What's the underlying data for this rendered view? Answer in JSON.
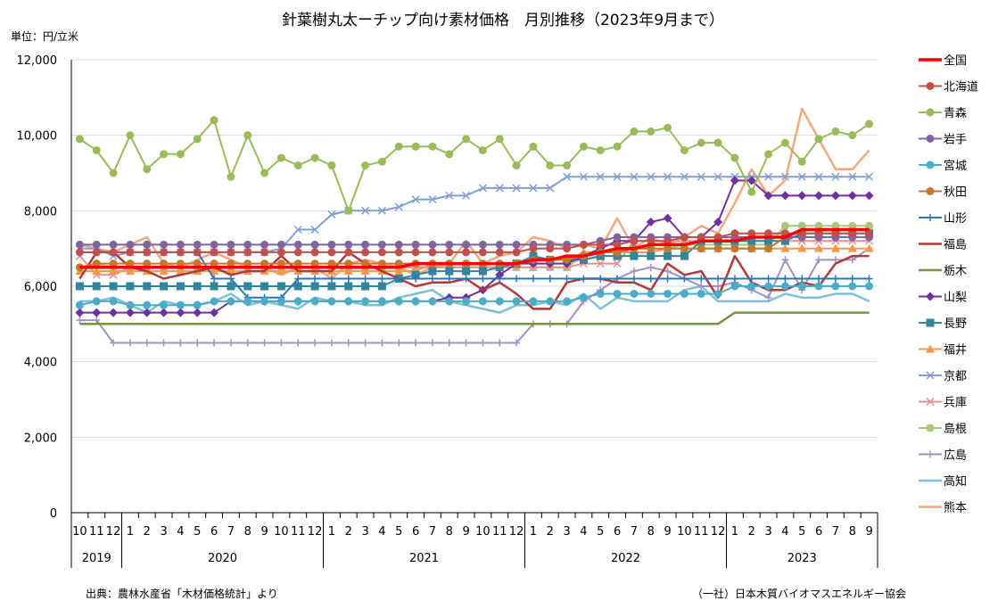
{
  "title": "針葉樹丸太ーチップ向け素材価格　月別推移（2023年9月まで）",
  "unit": "単位：円/立米",
  "source": "出典：農林水産省「木材価格統計」より",
  "publisher": "（一社）日本木質バイオマスエネルギー協会",
  "chart_data": {
    "type": "line",
    "title": "針葉樹丸太ーチップ向け素材価格　月別推移（2023年9月まで）",
    "ylabel": "単位：円/立米",
    "ylim": [
      0,
      12000
    ],
    "yticks": [
      0,
      2000,
      4000,
      6000,
      8000,
      10000,
      12000
    ],
    "ytick_labels": [
      "0",
      "2,000",
      "4,000",
      "6,000",
      "8,000",
      "10,000",
      "12,000"
    ],
    "grid": true,
    "legend_position": "right",
    "x_month_labels": [
      "10",
      "11",
      "12",
      "1",
      "2",
      "3",
      "4",
      "5",
      "6",
      "7",
      "8",
      "9",
      "10",
      "11",
      "12",
      "1",
      "2",
      "3",
      "4",
      "5",
      "6",
      "7",
      "8",
      "9",
      "10",
      "11",
      "12",
      "1",
      "2",
      "3",
      "4",
      "5",
      "6",
      "7",
      "8",
      "9",
      "10",
      "11",
      "12",
      "1",
      "2",
      "3",
      "4",
      "5",
      "6",
      "7",
      "8",
      "9"
    ],
    "x_year_groups": [
      {
        "label": "2019",
        "count": 3
      },
      {
        "label": "2020",
        "count": 12
      },
      {
        "label": "2021",
        "count": 12
      },
      {
        "label": "2022",
        "count": 12
      },
      {
        "label": "2023",
        "count": 9
      }
    ],
    "series": [
      {
        "name": "全国",
        "color": "#ff0000",
        "marker": "none",
        "width": 3.5,
        "values": [
          6500,
          6500,
          6500,
          6500,
          6500,
          6500,
          6500,
          6500,
          6500,
          6500,
          6500,
          6500,
          6500,
          6500,
          6500,
          6500,
          6500,
          6500,
          6500,
          6500,
          6600,
          6600,
          6600,
          6600,
          6600,
          6600,
          6600,
          6700,
          6700,
          6800,
          6800,
          6900,
          7000,
          7000,
          7100,
          7100,
          7100,
          7200,
          7200,
          7200,
          7300,
          7300,
          7300,
          7500,
          7500,
          7500,
          7500,
          7500
        ]
      },
      {
        "name": "北海道",
        "color": "#c0504d",
        "marker": "circle",
        "width": 2,
        "values": [
          6900,
          6900,
          6900,
          6900,
          6900,
          6900,
          6900,
          6900,
          6900,
          6900,
          6900,
          6900,
          6900,
          6900,
          6900,
          6900,
          6900,
          6900,
          6900,
          6900,
          6900,
          6900,
          6900,
          6900,
          6900,
          6900,
          6900,
          7000,
          7000,
          7000,
          7100,
          7100,
          7100,
          7200,
          7200,
          7200,
          7300,
          7300,
          7300,
          7400,
          7400,
          7400,
          7400,
          7400,
          7400,
          7400,
          7400,
          7400
        ]
      },
      {
        "name": "青森",
        "color": "#9bbb59",
        "marker": "circle",
        "width": 2,
        "values": [
          9900,
          9600,
          9000,
          10000,
          9100,
          9500,
          9500,
          9900,
          10400,
          8900,
          10000,
          9000,
          9400,
          9200,
          9400,
          9200,
          8000,
          9200,
          9300,
          9700,
          9700,
          9700,
          9500,
          9900,
          9600,
          9900,
          9200,
          9700,
          9200,
          9200,
          9700,
          9600,
          9700,
          10100,
          10100,
          10200,
          9600,
          9800,
          9800,
          9400,
          8500,
          9500,
          9800,
          9300,
          9900,
          10100,
          10000,
          10300
        ]
      },
      {
        "name": "岩手",
        "color": "#8064a2",
        "marker": "circle",
        "width": 2,
        "values": [
          7100,
          7100,
          7100,
          7100,
          7100,
          7100,
          7100,
          7100,
          7100,
          7100,
          7100,
          7100,
          7100,
          7100,
          7100,
          7100,
          7100,
          7100,
          7100,
          7100,
          7100,
          7100,
          7100,
          7100,
          7100,
          7100,
          7100,
          7100,
          7100,
          7100,
          7100,
          7200,
          7300,
          7300,
          7300,
          7300,
          7300,
          7300,
          7300,
          7300,
          7300,
          7300,
          7300,
          7300,
          7300,
          7300,
          7300,
          7300
        ]
      },
      {
        "name": "宮城",
        "color": "#4bacc6",
        "marker": "circle",
        "width": 2,
        "values": [
          5500,
          5600,
          5600,
          5500,
          5500,
          5500,
          5500,
          5500,
          5600,
          5600,
          5600,
          5600,
          5600,
          5600,
          5600,
          5600,
          5600,
          5600,
          5600,
          5600,
          5600,
          5600,
          5600,
          5600,
          5600,
          5600,
          5600,
          5600,
          5600,
          5600,
          5700,
          5800,
          5800,
          5800,
          5800,
          5800,
          5800,
          5800,
          5800,
          6000,
          6000,
          6000,
          6000,
          6000,
          6000,
          6000,
          6000,
          6000
        ]
      },
      {
        "name": "秋田",
        "color": "#c0792f",
        "marker": "circle",
        "width": 2,
        "values": [
          6500,
          6600,
          6600,
          6600,
          6600,
          6600,
          6600,
          6600,
          6600,
          6600,
          6600,
          6600,
          6600,
          6600,
          6600,
          6600,
          6600,
          6600,
          6600,
          6600,
          6600,
          6600,
          6600,
          6600,
          6600,
          6600,
          6600,
          6700,
          6700,
          6700,
          6800,
          6900,
          6900,
          7000,
          7000,
          7000,
          7000,
          7000,
          7000,
          7000,
          7000,
          7000,
          7300,
          7300,
          7300,
          7300,
          7300,
          7300
        ]
      },
      {
        "name": "山形",
        "color": "#2e75b6",
        "marker": "plus",
        "width": 2,
        "values": [
          6900,
          6900,
          6900,
          6900,
          6900,
          6900,
          6900,
          6900,
          6200,
          6200,
          5700,
          5700,
          5700,
          6200,
          6200,
          6200,
          6200,
          6200,
          6200,
          6200,
          6200,
          6200,
          6200,
          6200,
          6200,
          6200,
          6200,
          6200,
          6200,
          6200,
          6200,
          6200,
          6200,
          6200,
          6200,
          6200,
          6200,
          6200,
          6200,
          6200,
          6200,
          6200,
          6200,
          6200,
          6200,
          6200,
          6200,
          6200
        ]
      },
      {
        "name": "福島",
        "color": "#b2393a",
        "marker": "none",
        "width": 2.5,
        "values": [
          6200,
          6900,
          6900,
          6500,
          6400,
          6200,
          6300,
          6400,
          6500,
          6300,
          6400,
          6400,
          6800,
          6400,
          6400,
          6400,
          6900,
          6600,
          6400,
          6200,
          6000,
          6100,
          6100,
          6200,
          5900,
          6100,
          5800,
          5400,
          5400,
          6100,
          6200,
          6200,
          6100,
          6100,
          5900,
          6600,
          6300,
          6400,
          5700,
          6800,
          6100,
          5900,
          5900,
          6100,
          6000,
          6600,
          6800,
          6800
        ]
      },
      {
        "name": "栃木",
        "color": "#77933c",
        "marker": "none",
        "width": 2.5,
        "values": [
          5000,
          5000,
          5000,
          5000,
          5000,
          5000,
          5000,
          5000,
          5000,
          5000,
          5000,
          5000,
          5000,
          5000,
          5000,
          5000,
          5000,
          5000,
          5000,
          5000,
          5000,
          5000,
          5000,
          5000,
          5000,
          5000,
          5000,
          5000,
          5000,
          5000,
          5000,
          5000,
          5000,
          5000,
          5000,
          5000,
          5000,
          5000,
          5000,
          5300,
          5300,
          5300,
          5300,
          5300,
          5300,
          5300,
          5300,
          5300
        ]
      },
      {
        "name": "山梨",
        "color": "#7030a0",
        "marker": "diamond",
        "width": 2,
        "values": [
          5300,
          5300,
          5300,
          5300,
          5300,
          5300,
          5300,
          5300,
          5300,
          5600,
          5600,
          5600,
          5600,
          5600,
          5600,
          5600,
          5600,
          5600,
          5600,
          5600,
          5600,
          5600,
          5700,
          5700,
          5900,
          6300,
          6600,
          6600,
          6600,
          6600,
          6800,
          7000,
          7200,
          7200,
          7700,
          7800,
          7300,
          7300,
          7700,
          8800,
          8800,
          8400,
          8400,
          8400,
          8400,
          8400,
          8400,
          8400
        ]
      },
      {
        "name": "長野",
        "color": "#31859c",
        "marker": "square",
        "width": 2,
        "values": [
          6000,
          6000,
          6000,
          6000,
          6000,
          6000,
          6000,
          6000,
          6000,
          6000,
          6000,
          6000,
          6000,
          6000,
          6000,
          6000,
          6000,
          6000,
          6000,
          6200,
          6300,
          6400,
          6400,
          6400,
          6400,
          6500,
          6600,
          6800,
          6700,
          6700,
          6700,
          6800,
          6800,
          6800,
          6800,
          6800,
          6800,
          7200,
          7200,
          7200,
          7200,
          7200,
          7200,
          7400,
          7400,
          7400,
          7400,
          7400
        ]
      },
      {
        "name": "福井",
        "color": "#f79646",
        "marker": "triangle",
        "width": 2,
        "values": [
          6400,
          6400,
          6400,
          6400,
          6400,
          6400,
          6400,
          6400,
          6400,
          6400,
          6400,
          6400,
          6400,
          6400,
          6400,
          6400,
          6400,
          6400,
          6400,
          6400,
          6400,
          6600,
          6600,
          6600,
          6600,
          6600,
          6600,
          6700,
          6700,
          6700,
          6900,
          6900,
          6900,
          6900,
          6900,
          7000,
          7000,
          7000,
          7000,
          7000,
          7000,
          7000,
          7000,
          7000,
          7000,
          7000,
          7000,
          7000
        ]
      },
      {
        "name": "京都",
        "color": "#7f9fd6",
        "marker": "x",
        "width": 2,
        "values": [
          7000,
          7000,
          6800,
          6900,
          6900,
          6900,
          6900,
          6900,
          6900,
          6900,
          6900,
          6900,
          7000,
          7500,
          7500,
          7900,
          8000,
          8000,
          8000,
          8100,
          8300,
          8300,
          8400,
          8400,
          8600,
          8600,
          8600,
          8600,
          8600,
          8900,
          8900,
          8900,
          8900,
          8900,
          8900,
          8900,
          8900,
          8900,
          8900,
          8900,
          8900,
          8900,
          8900,
          8900,
          8900,
          8900,
          8900,
          8900
        ]
      },
      {
        "name": "兵庫",
        "color": "#e88f91",
        "marker": "x",
        "width": 2,
        "values": [
          6800,
          6300,
          6300,
          6500,
          6500,
          6500,
          6500,
          6500,
          6500,
          6500,
          6500,
          6500,
          6500,
          6500,
          6500,
          6500,
          6500,
          6500,
          6500,
          6500,
          6500,
          6500,
          6500,
          6500,
          6500,
          6500,
          6500,
          6500,
          6500,
          6500,
          6600,
          6600,
          6600,
          7200,
          7200,
          7200,
          7200,
          7200,
          7200,
          7200,
          7200,
          7200,
          7200,
          7200,
          7200,
          7200,
          7200,
          7200
        ]
      },
      {
        "name": "島根",
        "color": "#a9c77a",
        "marker": "circle",
        "width": 2,
        "values": [
          6500,
          6600,
          6500,
          6500,
          6500,
          6500,
          6500,
          6500,
          6500,
          6500,
          6500,
          6500,
          6500,
          6500,
          6500,
          6500,
          6500,
          6500,
          6500,
          6500,
          6500,
          6500,
          6500,
          6500,
          6500,
          6500,
          6500,
          6500,
          6500,
          6500,
          6800,
          6900,
          6900,
          7000,
          7000,
          7000,
          7100,
          7100,
          7100,
          7100,
          7100,
          7100,
          7600,
          7600,
          7600,
          7600,
          7600,
          7600
        ]
      },
      {
        "name": "広島",
        "color": "#a390c3",
        "marker": "plus",
        "width": 2,
        "values": [
          5100,
          5100,
          4500,
          4500,
          4500,
          4500,
          4500,
          4500,
          4500,
          4500,
          4500,
          4500,
          4500,
          4500,
          4500,
          4500,
          4500,
          4500,
          4500,
          4500,
          4500,
          4500,
          4500,
          4500,
          4500,
          4500,
          4500,
          5000,
          5000,
          5000,
          5600,
          5900,
          6200,
          6400,
          6500,
          6400,
          6200,
          6000,
          6000,
          6100,
          5900,
          5700,
          6700,
          5900,
          6700,
          6700,
          6700,
          7000
        ]
      },
      {
        "name": "高知",
        "color": "#7dc0d8",
        "marker": "none",
        "width": 2.5,
        "values": [
          5600,
          5600,
          5700,
          5500,
          5300,
          5600,
          5500,
          5500,
          5600,
          5800,
          5500,
          5600,
          5500,
          5400,
          5700,
          5600,
          5600,
          5500,
          5500,
          5700,
          5800,
          5900,
          5600,
          5500,
          5400,
          5300,
          5500,
          5500,
          5600,
          5500,
          5800,
          5400,
          5700,
          5600,
          5600,
          5600,
          5900,
          6000,
          5600,
          5600,
          5600,
          5600,
          5800,
          5700,
          5700,
          5800,
          5800,
          5600
        ]
      },
      {
        "name": "熊本",
        "color": "#f4a77a",
        "marker": "none",
        "width": 2.5,
        "values": [
          7100,
          7000,
          6900,
          7100,
          7300,
          6600,
          6500,
          6700,
          6900,
          6700,
          6500,
          6500,
          6300,
          6500,
          6500,
          6200,
          6600,
          6700,
          6600,
          6500,
          6300,
          6500,
          6600,
          7200,
          6600,
          6800,
          6900,
          7300,
          7200,
          7000,
          7100,
          7000,
          7800,
          7000,
          7300,
          7100,
          7300,
          7600,
          7400,
          8200,
          9100,
          8400,
          8800,
          10700,
          9900,
          9100,
          9100,
          9600
        ]
      }
    ]
  }
}
